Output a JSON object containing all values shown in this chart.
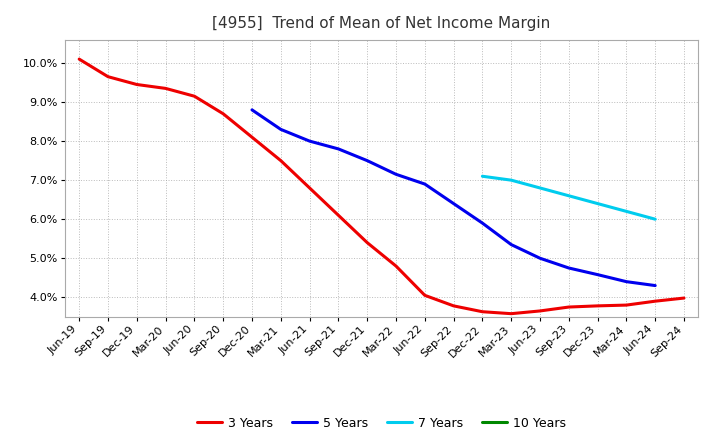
{
  "title": "[4955]  Trend of Mean of Net Income Margin",
  "background_color": "#ffffff",
  "grid_color": "#aaaaaa",
  "ylim": [
    0.035,
    0.106
  ],
  "yticks": [
    0.04,
    0.05,
    0.06,
    0.07,
    0.08,
    0.09,
    0.1
  ],
  "series_order": [
    "3 Years",
    "5 Years",
    "7 Years",
    "10 Years"
  ],
  "series": {
    "3 Years": {
      "color": "#ee0000",
      "dates": [
        "Jun-19",
        "Sep-19",
        "Dec-19",
        "Mar-20",
        "Jun-20",
        "Sep-20",
        "Dec-20",
        "Mar-21",
        "Jun-21",
        "Sep-21",
        "Dec-21",
        "Mar-22",
        "Jun-22",
        "Sep-22",
        "Dec-22",
        "Mar-23",
        "Jun-23",
        "Sep-23",
        "Dec-23",
        "Mar-24",
        "Jun-24",
        "Sep-24"
      ],
      "values": [
        0.101,
        0.0965,
        0.0945,
        0.0935,
        0.0915,
        0.087,
        0.081,
        0.075,
        0.068,
        0.061,
        0.054,
        0.048,
        0.0405,
        0.0378,
        0.0363,
        0.0358,
        0.0365,
        0.0375,
        0.0378,
        0.038,
        0.039,
        0.0398
      ]
    },
    "5 Years": {
      "color": "#0000ee",
      "dates": [
        "Dec-20",
        "Mar-21",
        "Jun-21",
        "Sep-21",
        "Dec-21",
        "Mar-22",
        "Jun-22",
        "Sep-22",
        "Dec-22",
        "Mar-23",
        "Jun-23",
        "Sep-23",
        "Dec-23",
        "Mar-24",
        "Jun-24"
      ],
      "values": [
        0.088,
        0.083,
        0.08,
        0.078,
        0.075,
        0.0715,
        0.069,
        0.064,
        0.059,
        0.0535,
        0.05,
        0.0475,
        0.0458,
        0.044,
        0.043
      ]
    },
    "7 Years": {
      "color": "#00ccee",
      "dates": [
        "Dec-22",
        "Mar-23",
        "Jun-23",
        "Sep-23",
        "Dec-23",
        "Mar-24",
        "Jun-24"
      ],
      "values": [
        0.071,
        0.07,
        0.068,
        0.066,
        0.064,
        0.062,
        0.06
      ]
    },
    "10 Years": {
      "color": "#008800",
      "dates": [
        "Sep-24"
      ],
      "values": [
        0.04
      ]
    }
  },
  "x_tick_labels": [
    "Jun-19",
    "Sep-19",
    "Dec-19",
    "Mar-20",
    "Jun-20",
    "Sep-20",
    "Dec-20",
    "Mar-21",
    "Jun-21",
    "Sep-21",
    "Dec-21",
    "Mar-22",
    "Jun-22",
    "Sep-22",
    "Dec-22",
    "Mar-23",
    "Jun-23",
    "Sep-23",
    "Dec-23",
    "Mar-24",
    "Jun-24",
    "Sep-24"
  ],
  "title_color": "#333333",
  "title_fontsize": 11,
  "tick_fontsize": 8,
  "legend_fontsize": 9,
  "linewidth": 2.2
}
